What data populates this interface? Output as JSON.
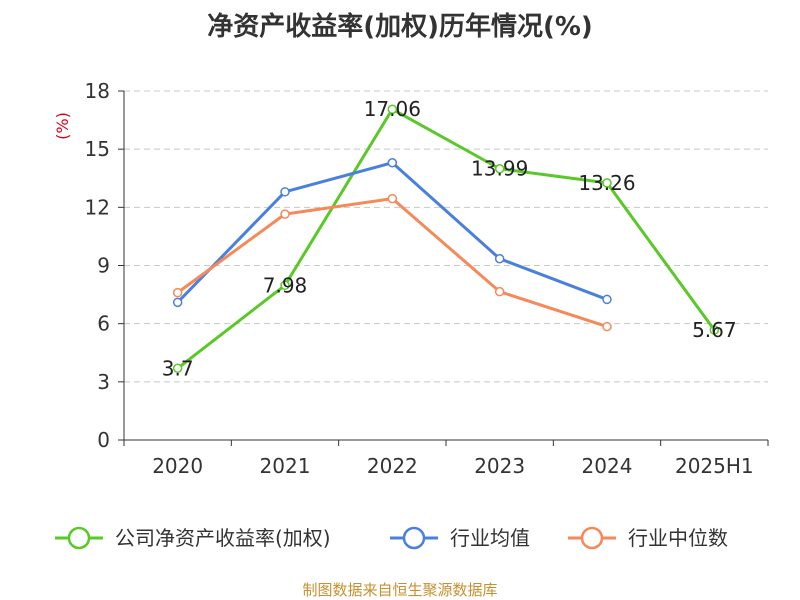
{
  "colors": {
    "roe": "#5ac828",
    "industry_avg": "#4a80dd",
    "industry_median": "#f5895a",
    "grid": "#c8c8c8",
    "axis": "#333333",
    "ylabel": "#d9001b",
    "source": "#c9902f"
  },
  "chart_data": {
    "type": "line",
    "title": "净资产收益率(加权)历年情况(%)",
    "ylabel": "(%)",
    "xlabel": "",
    "categories": [
      "2020",
      "2021",
      "2022",
      "2023",
      "2024",
      "2025H1"
    ],
    "ylim": [
      0,
      18
    ],
    "yticks": [
      0,
      3,
      6,
      9,
      12,
      15,
      18
    ],
    "grid": true,
    "legend_position": "bottom",
    "series": [
      {
        "name": "公司净资产收益率(加权)",
        "color": "#5ac828",
        "values": [
          3.7,
          7.98,
          17.06,
          13.99,
          13.26,
          5.67
        ],
        "labels": [
          "3.7",
          "7.98",
          "17.06",
          "13.99",
          "13.26",
          "5.67"
        ]
      },
      {
        "name": "行业均值",
        "color": "#4a80dd",
        "values": [
          7.1,
          12.8,
          14.3,
          9.35,
          7.25,
          null
        ]
      },
      {
        "name": "行业中位数",
        "color": "#f5895a",
        "values": [
          7.6,
          11.65,
          12.45,
          7.65,
          5.85,
          null
        ]
      }
    ],
    "source": "制图数据来自恒生聚源数据库"
  }
}
